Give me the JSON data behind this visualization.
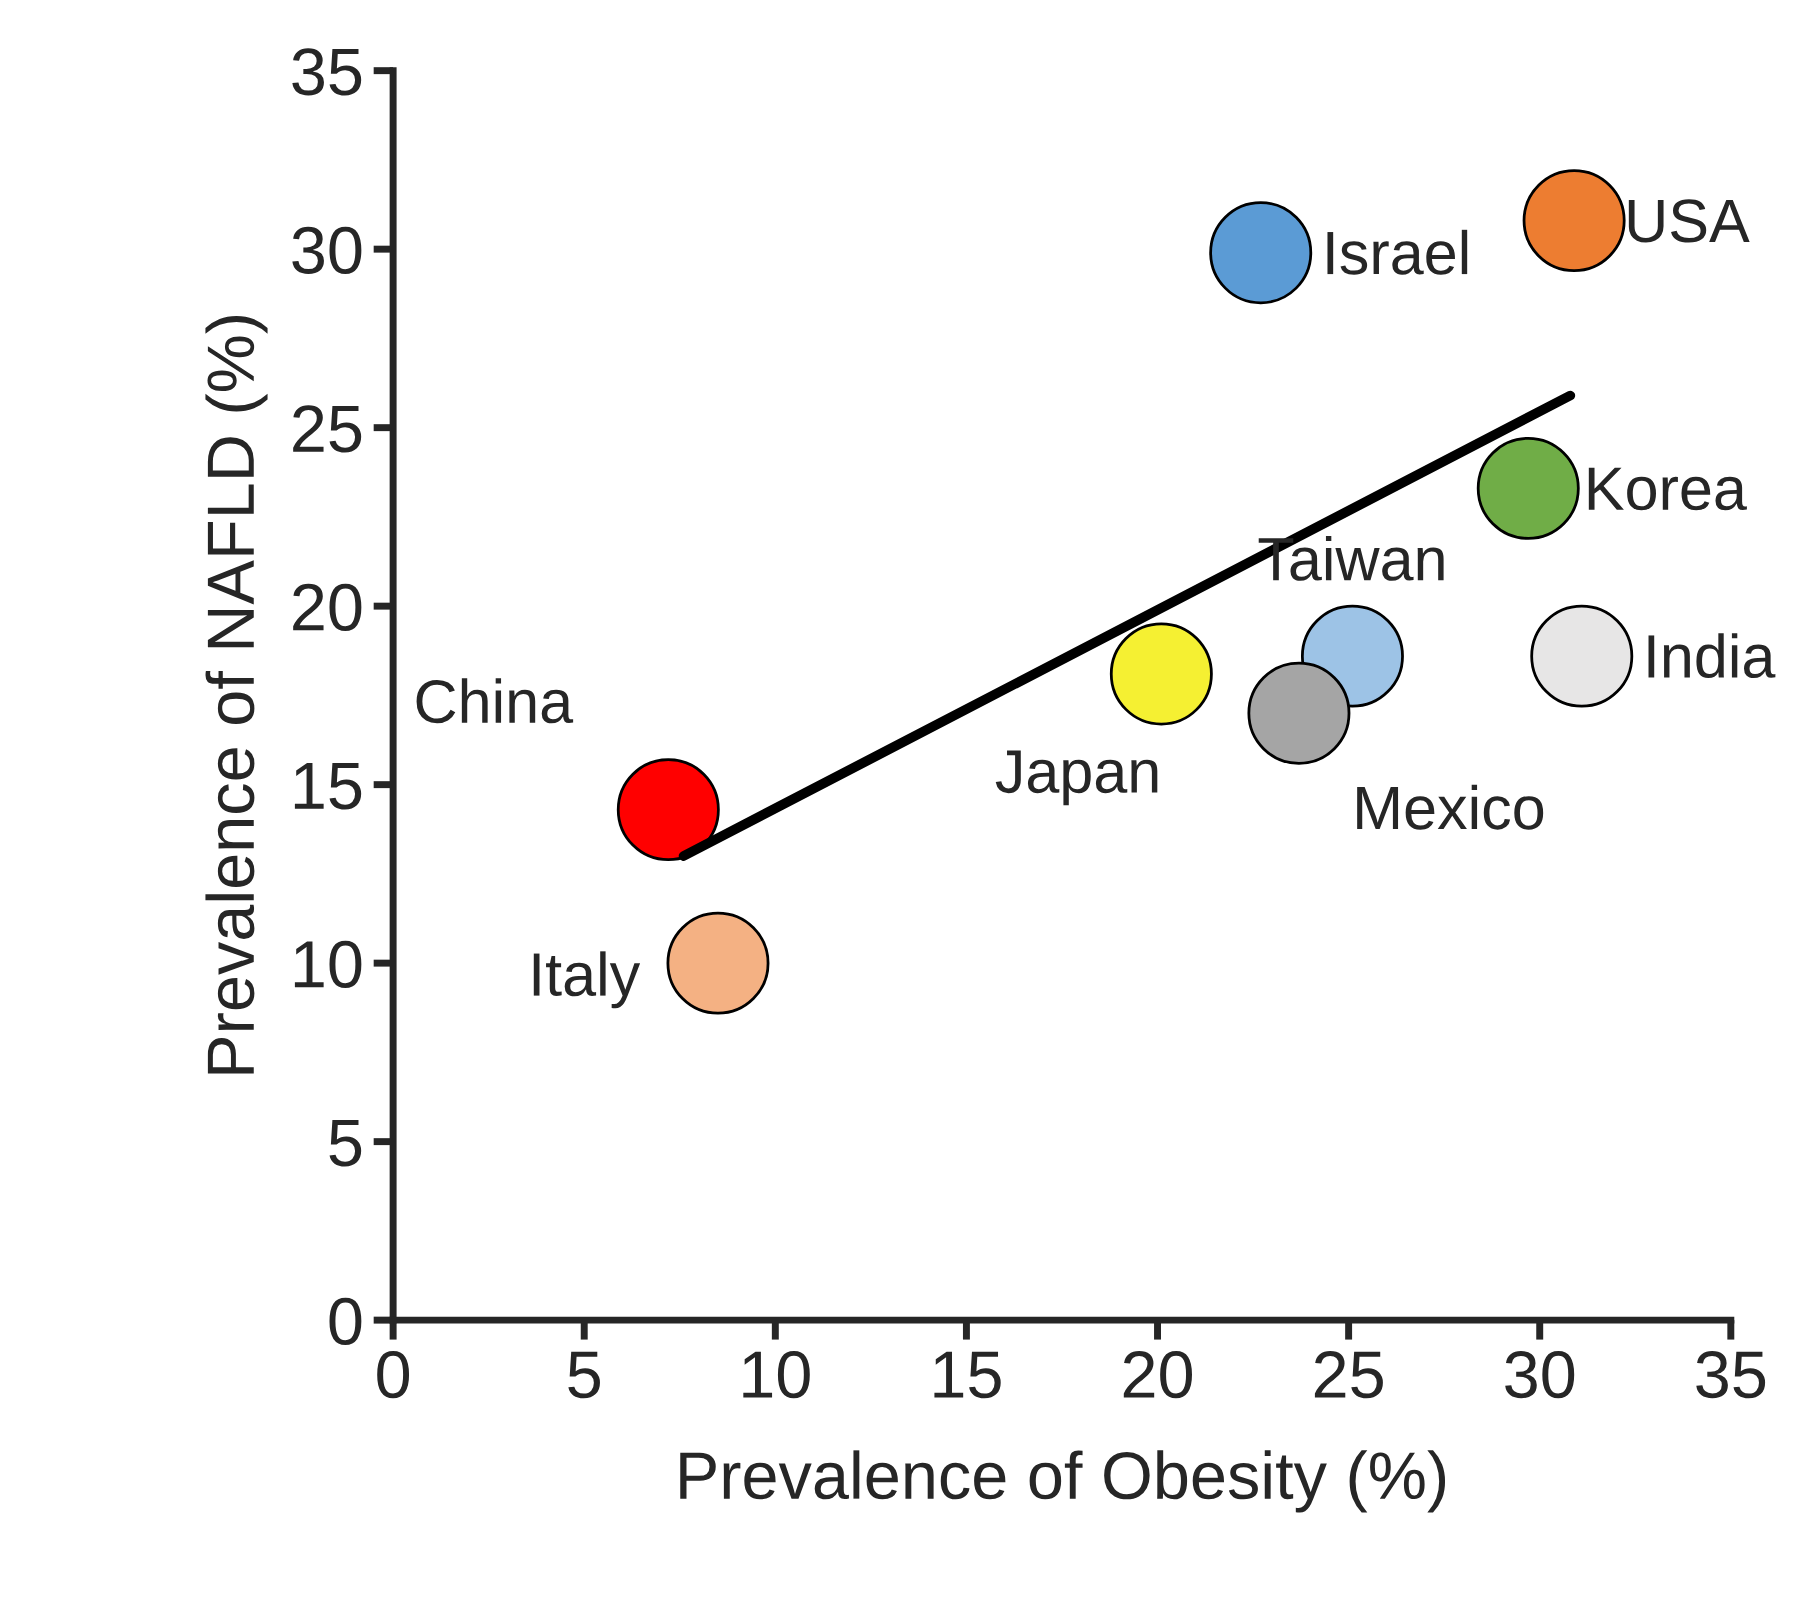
{
  "chart_data": {
    "type": "scatter",
    "xlabel": "Prevalence of Obesity (%)",
    "ylabel": "Prevalence of NAFLD (%)",
    "xlim": [
      0,
      35
    ],
    "ylim": [
      0,
      35
    ],
    "xticks": [
      0,
      5,
      10,
      15,
      20,
      25,
      30,
      35
    ],
    "yticks": [
      0,
      5,
      10,
      15,
      20,
      25,
      30,
      35
    ],
    "grid": false,
    "legend": false,
    "marker": "circle",
    "series": [
      {
        "name": "China",
        "color": "#ff0000",
        "x": [
          7.2
        ],
        "values": [
          14.3
        ]
      },
      {
        "name": "Italy",
        "color": "#f4b183",
        "x": [
          8.5
        ],
        "values": [
          10.0
        ]
      },
      {
        "name": "Japan",
        "color": "#f5f032",
        "x": [
          20.1
        ],
        "values": [
          18.1
        ]
      },
      {
        "name": "Israel",
        "color": "#5b9bd5",
        "x": [
          22.7
        ],
        "values": [
          29.9
        ]
      },
      {
        "name": "USA",
        "color": "#ed7d31",
        "x": [
          30.9
        ],
        "values": [
          30.8
        ]
      },
      {
        "name": "Korea",
        "color": "#70ad47",
        "x": [
          29.7
        ],
        "values": [
          23.3
        ]
      },
      {
        "name": "Taiwan",
        "color": "#9dc3e6",
        "x": [
          25.1
        ],
        "values": [
          18.6
        ]
      },
      {
        "name": "Mexico",
        "color": "#a5a5a5",
        "x": [
          23.7
        ],
        "values": [
          17.0
        ]
      },
      {
        "name": "India",
        "color": "#e7e6e6",
        "x": [
          31.1
        ],
        "values": [
          18.6
        ]
      },
      {
        "type": "line",
        "marker": "none",
        "color": "#000000",
        "x": [
          7.6,
          30.8
        ],
        "values": [
          13.0,
          25.9
        ]
      }
    ]
  }
}
